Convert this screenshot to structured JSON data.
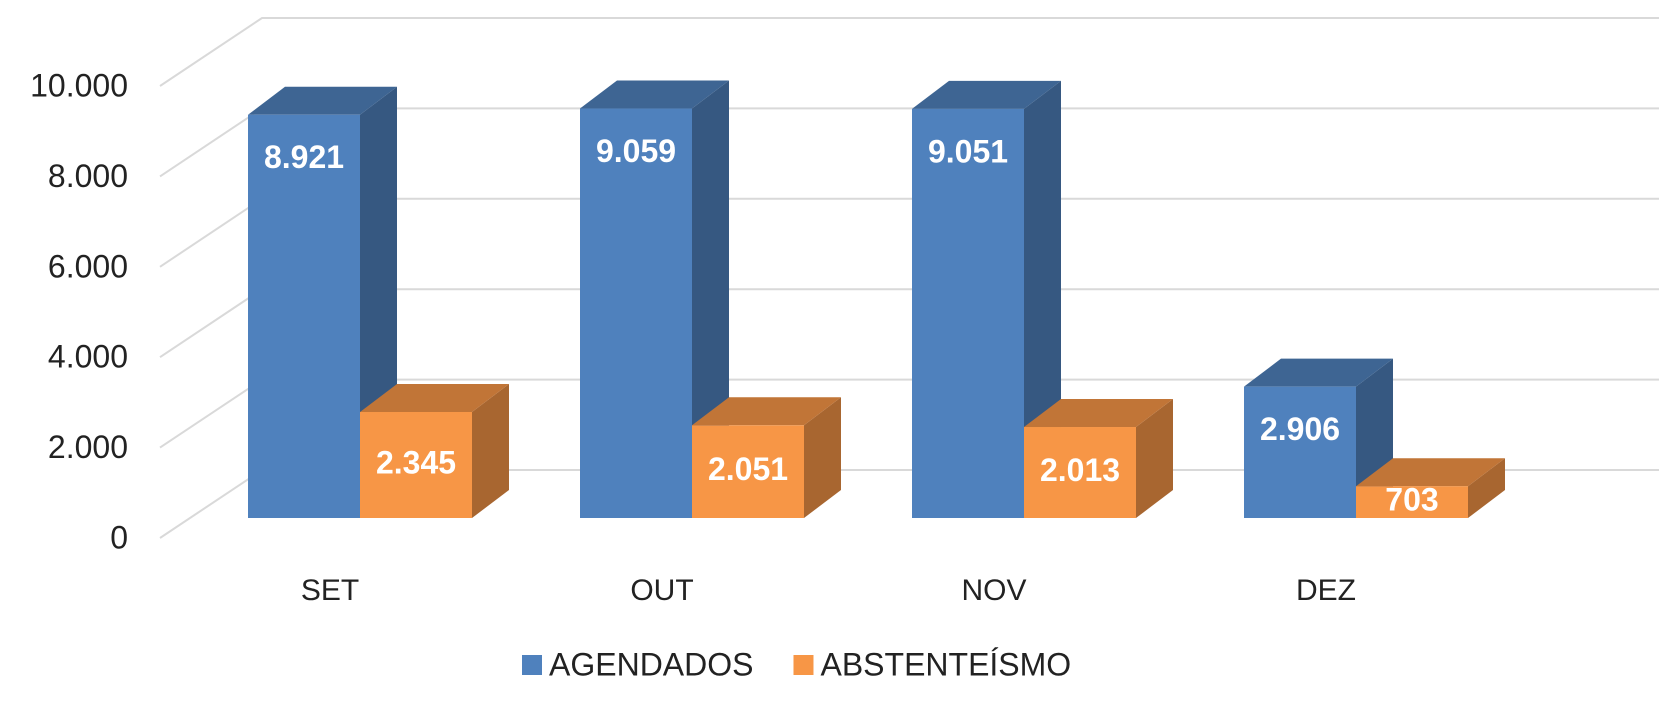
{
  "chart_data": {
    "type": "bar3d",
    "categories": [
      "SET",
      "OUT",
      "NOV",
      "DEZ"
    ],
    "series": [
      {
        "name": "AGENDADOS",
        "color": "#4f81bd",
        "values": [
          8921,
          9059,
          9051,
          2906
        ],
        "value_labels": [
          "8.921",
          "9.059",
          "9.051",
          "2.906"
        ]
      },
      {
        "name": "ABSTENTEÍSMO",
        "color": "#f79646",
        "values": [
          2345,
          2051,
          2013,
          703
        ],
        "value_labels": [
          "2.345",
          "2.051",
          "2.013",
          "703"
        ]
      }
    ],
    "ylim": [
      0,
      10000
    ],
    "yticks": [
      0,
      {
        "value": 2000,
        "label": "2.000"
      },
      {
        "value": 4000,
        "label": "4.000"
      },
      {
        "value": 6000,
        "label": "6.000"
      },
      {
        "value": 8000,
        "label": "8.000"
      },
      {
        "value": 10000,
        "label": "10.000"
      }
    ],
    "grid": true,
    "legend": "bottom"
  }
}
